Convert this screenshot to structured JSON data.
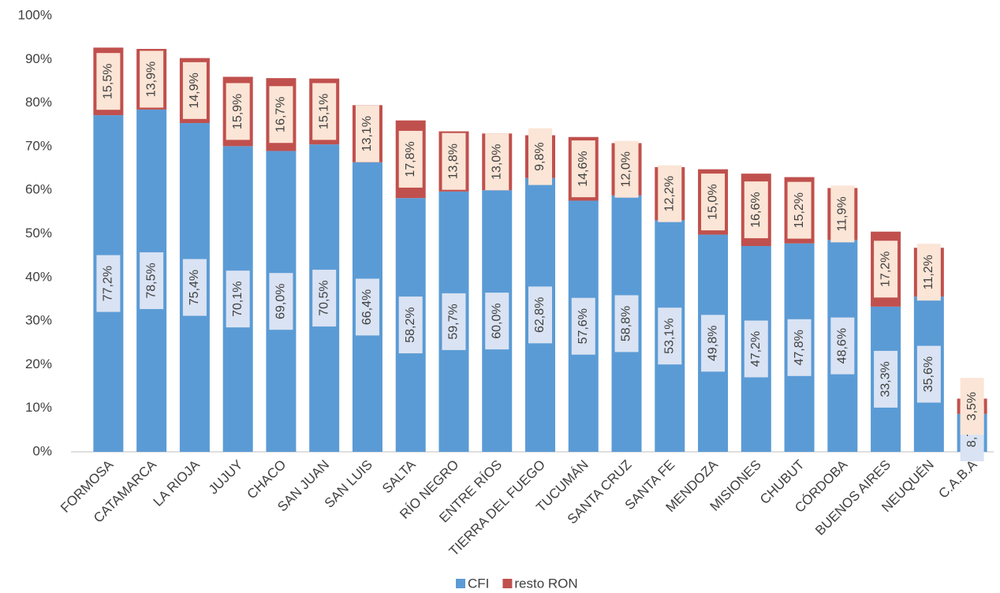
{
  "chart_data": {
    "type": "stacked-bar",
    "categories": [
      "FORMOSA",
      "CATAMARCA",
      "LA RIOJA",
      "JUJUY",
      "CHACO",
      "SAN JUAN",
      "SAN LUIS",
      "SALTA",
      "RÍO NEGRO",
      "ENTRE RÍOS",
      "TIERRA DEL FUEGO",
      "TUCUMÁN",
      "SANTA CRUZ",
      "SANTA FE",
      "MENDOZA",
      "MISIONES",
      "CHUBUT",
      "CÓRDOBA",
      "BUENOS AIRES",
      "NEUQUÉN",
      "C.A.B.A"
    ],
    "series": [
      {
        "name": "CFI",
        "color": "#5b9bd5",
        "label_box": "#dae3f3",
        "values": [
          77.2,
          78.5,
          75.4,
          70.1,
          69.0,
          70.5,
          66.4,
          58.2,
          59.7,
          60.0,
          62.8,
          57.6,
          58.8,
          53.1,
          49.8,
          47.2,
          47.8,
          48.6,
          33.3,
          35.6,
          8.7
        ],
        "value_labels": [
          "77,2%",
          "78,5%",
          "75,4%",
          "70,1%",
          "69,0%",
          "70,5%",
          "66,4%",
          "58,2%",
          "59,7%",
          "60,0%",
          "62,8%",
          "57,6%",
          "58,8%",
          "53,1%",
          "49,8%",
          "47,2%",
          "47,8%",
          "48,6%",
          "33,3%",
          "35,6%",
          "8,7%"
        ]
      },
      {
        "name": "resto RON",
        "color": "#c0504d",
        "label_box": "#fbe5d6",
        "values": [
          15.5,
          13.9,
          14.9,
          15.9,
          16.7,
          15.1,
          13.1,
          17.8,
          13.8,
          13.0,
          9.8,
          14.6,
          12.0,
          12.2,
          15.0,
          16.6,
          15.2,
          11.9,
          17.2,
          11.2,
          3.5
        ],
        "value_labels": [
          "15,5%",
          "13,9%",
          "14,9%",
          "15,9%",
          "16,7%",
          "15,1%",
          "13,1%",
          "17,8%",
          "13,8%",
          "13,0%",
          "9,8%",
          "14,6%",
          "12,0%",
          "12,2%",
          "15,0%",
          "16,6%",
          "15,2%",
          "11,9%",
          "17,2%",
          "11,2%",
          "3,5%"
        ]
      }
    ],
    "ylim": [
      0,
      100
    ],
    "yticks": [
      {
        "value": 0,
        "label": "0%"
      },
      {
        "value": 10,
        "label": "10%"
      },
      {
        "value": 20,
        "label": "20%"
      },
      {
        "value": 30,
        "label": "30%"
      },
      {
        "value": 40,
        "label": "40%"
      },
      {
        "value": 50,
        "label": "50%"
      },
      {
        "value": 60,
        "label": "60%"
      },
      {
        "value": 70,
        "label": "70%"
      },
      {
        "value": 80,
        "label": "80%"
      },
      {
        "value": 90,
        "label": "90%"
      },
      {
        "value": 100,
        "label": "100%"
      }
    ],
    "legend": "bottom"
  }
}
